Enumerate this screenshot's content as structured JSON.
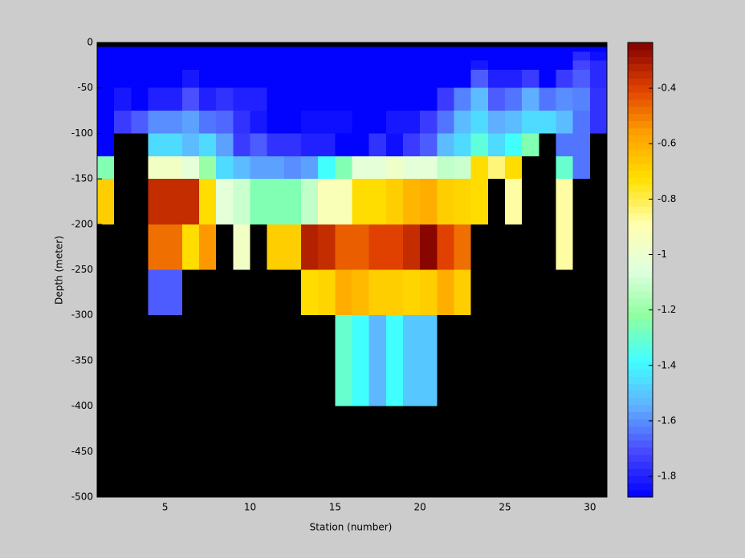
{
  "chart_data": {
    "type": "heatmap",
    "xlabel": "Station (number)",
    "ylabel": "Depth (meter)",
    "x": [
      1,
      2,
      3,
      4,
      5,
      6,
      7,
      8,
      9,
      10,
      11,
      12,
      13,
      14,
      15,
      16,
      17,
      18,
      19,
      20,
      21,
      22,
      23,
      24,
      25,
      26,
      27,
      28,
      29,
      30,
      31
    ],
    "y": [
      0,
      -5,
      -10,
      -20,
      -30,
      -50,
      -75,
      -100,
      -125,
      -150,
      -200,
      -250,
      -300,
      -400,
      -500
    ],
    "values": [
      [
        null,
        null,
        null,
        null,
        null,
        null,
        null,
        null,
        null,
        null,
        null,
        null,
        null,
        null,
        null,
        null,
        null,
        null,
        null,
        null,
        null,
        null,
        null,
        null,
        null,
        null,
        null,
        null,
        null,
        null
      ],
      [
        -1.87,
        -1.87,
        -1.87,
        -1.87,
        -1.87,
        -1.87,
        -1.87,
        -1.87,
        -1.87,
        -1.87,
        -1.87,
        -1.87,
        -1.87,
        -1.87,
        -1.87,
        -1.87,
        -1.87,
        -1.87,
        -1.87,
        -1.87,
        -1.87,
        -1.87,
        -1.87,
        -1.87,
        -1.87,
        -1.87,
        -1.87,
        -1.87,
        -1.87,
        -1.87
      ],
      [
        -1.87,
        -1.87,
        -1.87,
        -1.87,
        -1.87,
        -1.87,
        -1.87,
        -1.87,
        -1.87,
        -1.87,
        -1.87,
        -1.87,
        -1.87,
        -1.87,
        -1.87,
        -1.87,
        -1.87,
        -1.87,
        -1.87,
        -1.87,
        -1.87,
        -1.87,
        -1.87,
        -1.87,
        -1.87,
        -1.87,
        -1.87,
        -1.87,
        -1.78,
        -1.84
      ],
      [
        -1.87,
        -1.87,
        -1.87,
        -1.87,
        -1.87,
        -1.87,
        -1.87,
        -1.87,
        -1.87,
        -1.87,
        -1.87,
        -1.87,
        -1.87,
        -1.87,
        -1.87,
        -1.87,
        -1.87,
        -1.87,
        -1.87,
        -1.87,
        -1.87,
        -1.87,
        -1.82,
        -1.87,
        -1.87,
        -1.87,
        -1.87,
        -1.87,
        -1.72,
        -1.78
      ],
      [
        -1.87,
        -1.87,
        -1.87,
        -1.87,
        -1.87,
        -1.82,
        -1.87,
        -1.87,
        -1.87,
        -1.87,
        -1.87,
        -1.87,
        -1.87,
        -1.87,
        -1.87,
        -1.87,
        -1.87,
        -1.87,
        -1.87,
        -1.87,
        -1.87,
        -1.87,
        -1.68,
        -1.8,
        -1.8,
        -1.74,
        -1.87,
        -1.74,
        -1.68,
        -1.78
      ],
      [
        -1.87,
        -1.82,
        -1.87,
        -1.8,
        -1.8,
        -1.7,
        -1.8,
        -1.76,
        -1.8,
        -1.8,
        -1.87,
        -1.87,
        -1.87,
        -1.87,
        -1.87,
        -1.87,
        -1.87,
        -1.87,
        -1.87,
        -1.87,
        -1.74,
        -1.62,
        -1.52,
        -1.68,
        -1.64,
        -1.55,
        -1.64,
        -1.6,
        -1.62,
        -1.76
      ],
      [
        -1.87,
        -1.74,
        -1.68,
        -1.6,
        -1.6,
        -1.57,
        -1.64,
        -1.66,
        -1.76,
        -1.82,
        -1.87,
        -1.87,
        -1.84,
        -1.84,
        -1.84,
        -1.87,
        -1.87,
        -1.82,
        -1.82,
        -1.74,
        -1.64,
        -1.52,
        -1.46,
        -1.55,
        -1.52,
        -1.46,
        -1.46,
        -1.52,
        -1.64,
        -1.76
      ],
      [
        -1.87,
        null,
        null,
        -1.46,
        -1.46,
        -1.52,
        -1.46,
        -1.57,
        -1.74,
        -1.68,
        -1.76,
        -1.76,
        -1.8,
        -1.8,
        -1.87,
        -1.87,
        -1.76,
        -1.84,
        -1.74,
        -1.68,
        -1.52,
        -1.46,
        -1.32,
        -1.46,
        -1.38,
        -1.25,
        null,
        -1.64,
        -1.64,
        null
      ],
      [
        -1.25,
        null,
        null,
        -0.96,
        -0.96,
        -1.03,
        -1.2,
        -1.46,
        -1.52,
        -1.57,
        -1.57,
        -1.6,
        -1.57,
        -1.38,
        -1.25,
        -1.03,
        -1.03,
        -0.98,
        -1.03,
        -1.03,
        -1.12,
        -1.1,
        -0.72,
        -0.84,
        -0.72,
        null,
        null,
        -1.3,
        -1.64,
        null
      ],
      [
        -0.68,
        null,
        null,
        -0.35,
        -0.35,
        -0.35,
        -0.72,
        -1.03,
        -1.1,
        -1.25,
        -1.25,
        -1.25,
        -1.12,
        -0.92,
        -0.92,
        -0.72,
        -0.72,
        -0.68,
        -0.62,
        -0.6,
        -0.68,
        -0.7,
        -0.72,
        null,
        -0.88,
        null,
        null,
        -0.88,
        null,
        null
      ],
      [
        null,
        null,
        null,
        -0.48,
        -0.48,
        -0.72,
        -0.55,
        null,
        -0.96,
        null,
        -0.68,
        -0.68,
        -0.32,
        -0.35,
        -0.45,
        -0.45,
        -0.4,
        -0.4,
        -0.35,
        -0.25,
        -0.4,
        -0.48,
        null,
        null,
        null,
        null,
        null,
        -0.88,
        null,
        null
      ],
      [
        null,
        null,
        null,
        -1.68,
        -1.68,
        null,
        null,
        null,
        null,
        null,
        null,
        null,
        -0.72,
        -0.7,
        -0.6,
        -0.63,
        -0.68,
        -0.68,
        -0.7,
        -0.68,
        -0.6,
        -0.68,
        null,
        null,
        null,
        null,
        null,
        null,
        null,
        null
      ],
      [
        null,
        null,
        null,
        null,
        null,
        null,
        null,
        null,
        null,
        null,
        null,
        null,
        null,
        null,
        -1.3,
        -1.38,
        -1.53,
        -1.38,
        -1.5,
        -1.5,
        null,
        null,
        null,
        null,
        null,
        null,
        null,
        null,
        null,
        null
      ],
      [
        null,
        null,
        null,
        null,
        null,
        null,
        null,
        null,
        null,
        null,
        null,
        null,
        null,
        null,
        null,
        null,
        null,
        null,
        null,
        null,
        null,
        null,
        null,
        null,
        null,
        null,
        null,
        null,
        null,
        null
      ]
    ],
    "xlim": [
      1,
      31
    ],
    "ylim": [
      -500,
      0
    ],
    "xticks": [
      5,
      10,
      15,
      20,
      25,
      30
    ],
    "yticks": [
      -500,
      -450,
      -400,
      -350,
      -300,
      -250,
      -200,
      -150,
      -100,
      -50,
      0
    ],
    "clim": [
      -1.875,
      -0.235
    ],
    "colorbar_ticks": [
      -1.8,
      -1.6,
      -1.4,
      -1.2,
      -1,
      -0.8,
      -0.6,
      -0.4
    ],
    "colormap": [
      "#0000ff",
      "#4848ff",
      "#60b0ff",
      "#40ffff",
      "#90ffa0",
      "#e0ffe0",
      "#ffffb0",
      "#ffe000",
      "#ffa000",
      "#e04000",
      "#800000"
    ],
    "nan_color": "#000000"
  }
}
